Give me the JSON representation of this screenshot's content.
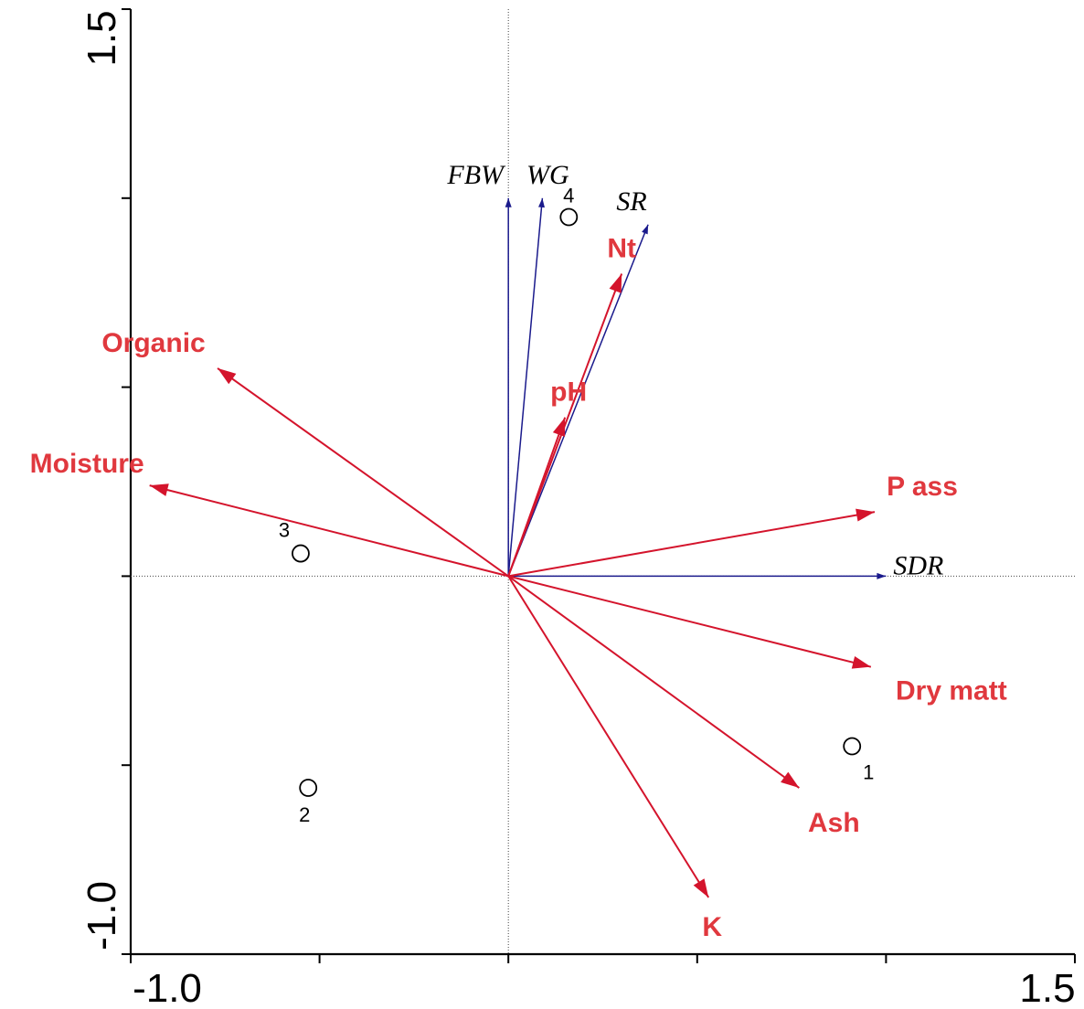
{
  "chart_data": {
    "type": "scatter",
    "xlim": [
      -1.0,
      1.5
    ],
    "ylim": [
      -1.0,
      1.5
    ],
    "x_tick_labels": [
      "-1.0",
      "1.5"
    ],
    "y_tick_labels": [
      "-1.0",
      "1.5"
    ],
    "grid": false,
    "env_vectors": [
      {
        "label": "Organic",
        "x": -0.77,
        "y": 0.55
      },
      {
        "label": "Moisture",
        "x": -0.95,
        "y": 0.24
      },
      {
        "label": "Nt",
        "x": 0.3,
        "y": 0.8
      },
      {
        "label": "pH",
        "x": 0.15,
        "y": 0.42
      },
      {
        "label": "P ass",
        "x": 0.97,
        "y": 0.17
      },
      {
        "label": "Dry matt",
        "x": 0.96,
        "y": -0.24
      },
      {
        "label": "Ash",
        "x": 0.77,
        "y": -0.56
      },
      {
        "label": "K",
        "x": 0.53,
        "y": -0.85
      }
    ],
    "species_vectors": [
      {
        "label": "FBW",
        "x": 0.0,
        "y": 1.0
      },
      {
        "label": "WG",
        "x": 0.09,
        "y": 1.0
      },
      {
        "label": "SR",
        "x": 0.37,
        "y": 0.93
      },
      {
        "label": "SDR",
        "x": 1.0,
        "y": 0.0
      }
    ],
    "sites": [
      {
        "label": "1",
        "x": 0.91,
        "y": -0.45
      },
      {
        "label": "2",
        "x": -0.53,
        "y": -0.56
      },
      {
        "label": "3",
        "x": -0.55,
        "y": 0.06
      },
      {
        "label": "4",
        "x": 0.16,
        "y": 0.95
      }
    ],
    "colors": {
      "env": "#e0383e",
      "env_arrow": "#d4142c",
      "species": "#1a1a8c",
      "axis": "#000000"
    }
  }
}
